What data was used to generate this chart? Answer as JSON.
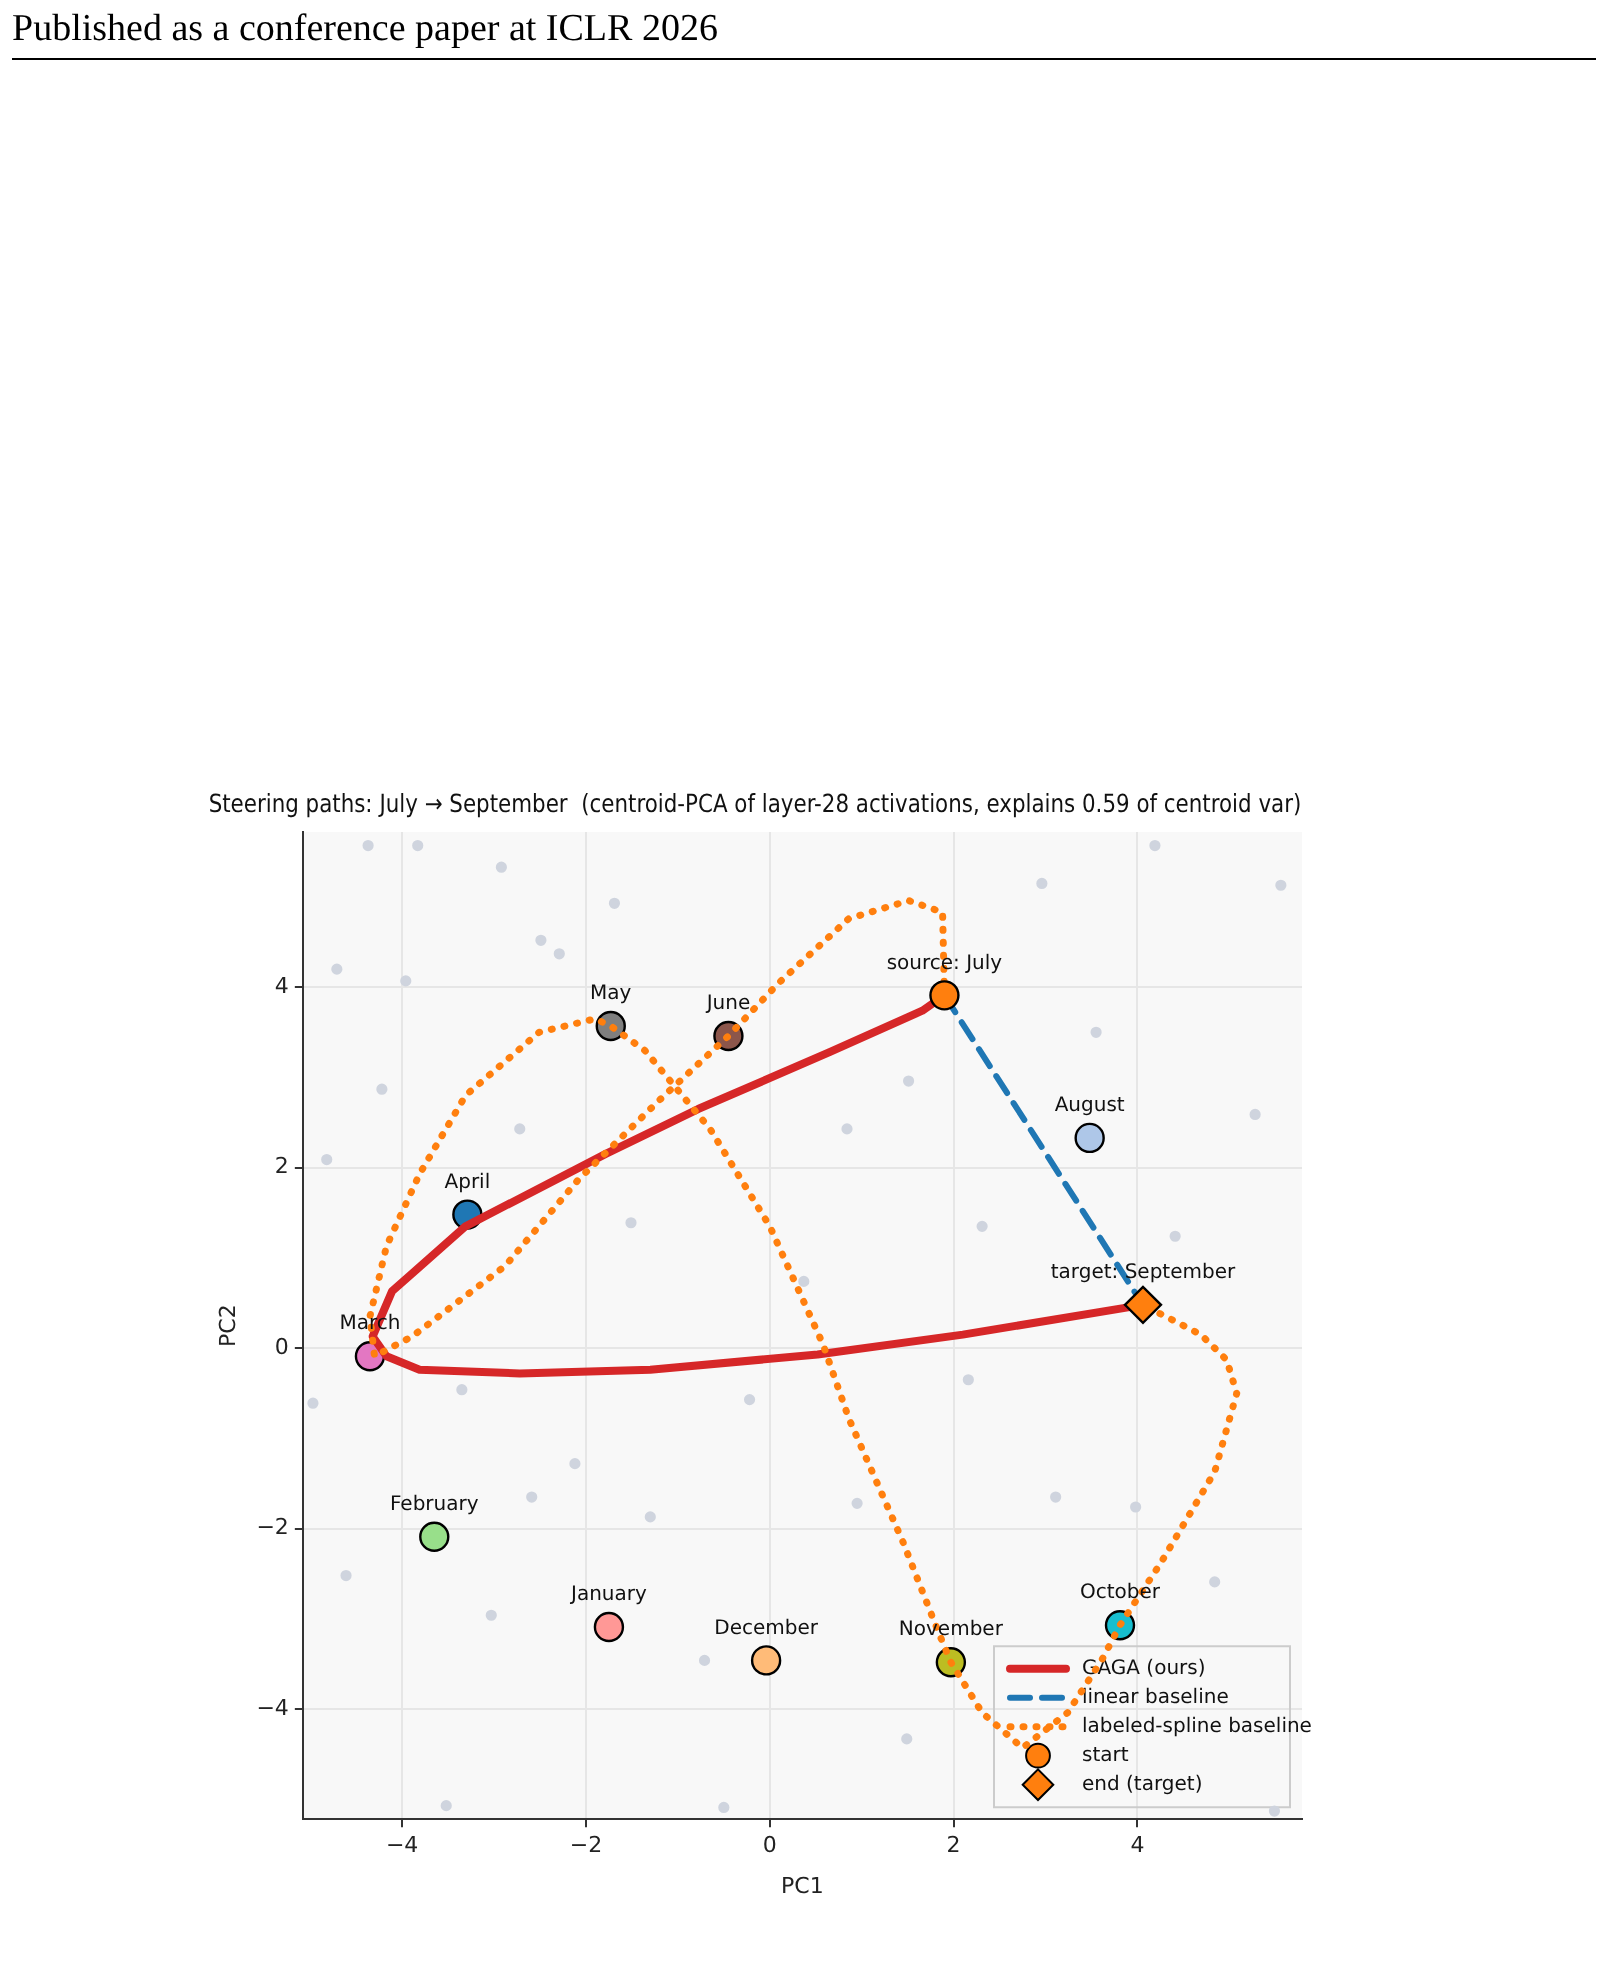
{
  "chart_data": {
    "type": "scatter",
    "title": "Steering paths: July → September  (centroid-PCA of layer-28 activations, explains 0.59 of centroid var)",
    "xlabel": "PC1",
    "ylabel": "PC2",
    "xlim": [
      -5.08,
      5.79
    ],
    "ylim": [
      -5.22,
      5.72
    ],
    "xticks": [
      {
        "value": -4,
        "label": "−4"
      },
      {
        "value": -2,
        "label": "−2"
      },
      0,
      2,
      4
    ],
    "yticks": [
      {
        "value": -4,
        "label": "−4"
      },
      {
        "value": -2,
        "label": "−2"
      },
      0,
      2,
      4
    ],
    "grid": true,
    "legend": "bottom right",
    "series": [
      {
        "color": "#cfd4de",
        "marker": "circle",
        "x": [
          -4.37,
          -3.83,
          -2.92,
          -1.69,
          -2.49,
          -4.71,
          -3.96,
          -2.29,
          -4.22,
          -4.82,
          -2.72,
          -1.51,
          0.84,
          1.51,
          0.37,
          -4.97,
          -3.35,
          -2.12,
          -2.59,
          -4.61,
          -3.03,
          -1.3,
          -0.71,
          -0.5,
          -3.52,
          0.95,
          1.49,
          -0.22,
          4.19,
          2.96,
          3.55,
          5.28,
          2.31,
          4.41,
          5.56,
          2.16,
          3.11,
          4.84,
          5.49,
          3.98
        ],
        "values": [
          5.57,
          5.57,
          5.33,
          4.93,
          4.52,
          4.2,
          4.07,
          4.37,
          2.87,
          2.09,
          2.43,
          1.39,
          2.43,
          2.96,
          0.74,
          -0.61,
          -0.46,
          -1.28,
          -1.65,
          -2.52,
          -2.96,
          -1.87,
          -3.46,
          -5.09,
          -5.07,
          -1.72,
          -4.33,
          -0.57,
          5.57,
          5.15,
          3.5,
          2.59,
          1.35,
          1.24,
          5.13,
          -0.35,
          -1.65,
          -2.59,
          -5.13,
          -1.76
        ]
      },
      {
        "marker": "circle",
        "colors": [
          "#ff9896",
          "#98df8a",
          "#e377c2",
          "#1f77b4",
          "#7f7f7f",
          "#8c564b",
          "#aec7e8",
          "#17becf",
          "#bcbd22",
          "#ffbb78"
        ],
        "x": [
          -1.75,
          -3.65,
          -4.35,
          -3.29,
          -1.73,
          -0.45,
          3.48,
          3.81,
          1.97,
          -0.04
        ],
        "values": [
          -3.09,
          -2.09,
          -0.09,
          1.48,
          3.57,
          3.46,
          2.33,
          -3.07,
          -3.48,
          -3.46
        ]
      },
      {
        "type": "line",
        "name": "GAGA (ours)",
        "color": "#d62728",
        "line_style": "solid",
        "marker": "none",
        "x": [
          1.9,
          1.66,
          0.65,
          -0.78,
          -1.79,
          -3.31,
          -4.11,
          -4.32,
          -4.17,
          -3.81,
          -2.72,
          -1.3,
          0.52,
          2.1,
          4.06
        ],
        "values": [
          3.91,
          3.74,
          3.28,
          2.65,
          2.15,
          1.35,
          0.63,
          0.13,
          -0.09,
          -0.24,
          -0.28,
          -0.24,
          -0.07,
          0.15,
          0.48
        ]
      },
      {
        "type": "line",
        "name": "linear baseline",
        "color": "#1f77b4",
        "line_style": "dashed",
        "marker": "none",
        "x": [
          1.9,
          4.06
        ],
        "values": [
          3.91,
          0.48
        ]
      },
      {
        "type": "line",
        "name": "labeled-spline baseline",
        "color": "#ff7f0e",
        "line_style": "dotted",
        "marker": "none",
        "x": [
          1.9,
          1.88,
          1.51,
          0.86,
          0.09,
          -0.45,
          -1.21,
          -2.08,
          -2.88,
          -3.89,
          -4.3,
          -4.35,
          -4.17,
          -3.81,
          -3.31,
          -2.51,
          -1.9,
          -1.73,
          -1.36,
          -0.65,
          0.0,
          0.58,
          0.86,
          1.45,
          1.82,
          1.97,
          2.31,
          2.75,
          3.24,
          3.61,
          3.81,
          4.26,
          4.84,
          5.08,
          4.97,
          4.69,
          4.06
        ],
        "values": [
          3.91,
          4.83,
          4.96,
          4.76,
          4.04,
          3.46,
          2.74,
          1.87,
          0.91,
          0.13,
          -0.09,
          0.35,
          1.13,
          1.93,
          2.8,
          3.5,
          3.65,
          3.57,
          3.3,
          2.43,
          1.35,
          0.04,
          -0.78,
          -2.15,
          -3.11,
          -3.48,
          -4.04,
          -4.43,
          -4.04,
          -3.46,
          -3.07,
          -2.37,
          -1.37,
          -0.5,
          -0.13,
          0.15,
          0.48
        ]
      },
      {
        "name": "start",
        "color": "#ff7f0e",
        "marker": "circle",
        "x": [
          1.9
        ],
        "values": [
          3.91
        ]
      },
      {
        "name": "end (target)",
        "color": "#ff7f0e",
        "marker": "diamond",
        "x": [
          4.06
        ],
        "values": [
          0.48
        ]
      }
    ],
    "annotations": [
      "Published as a conference paper at ICLR 2026",
      {
        "text": "January",
        "x": -1.75,
        "y": -3.09
      },
      {
        "text": "February",
        "x": -3.65,
        "y": -2.09
      },
      {
        "text": "March",
        "x": -4.35,
        "y": -0.09
      },
      {
        "text": "April",
        "x": -3.29,
        "y": 1.48
      },
      {
        "text": "May",
        "x": -1.73,
        "y": 3.57
      },
      {
        "text": "June",
        "x": -0.45,
        "y": 3.46
      },
      {
        "text": "August",
        "x": 3.48,
        "y": 2.33
      },
      {
        "text": "October",
        "x": 3.81,
        "y": -3.07
      },
      {
        "text": "November",
        "x": 1.97,
        "y": -3.48
      },
      {
        "text": "December",
        "x": -0.04,
        "y": -3.46
      },
      {
        "text": "source: July",
        "x": 1.9,
        "y": 3.91
      },
      {
        "text": "target: September",
        "x": 4.06,
        "y": 0.48
      }
    ]
  }
}
